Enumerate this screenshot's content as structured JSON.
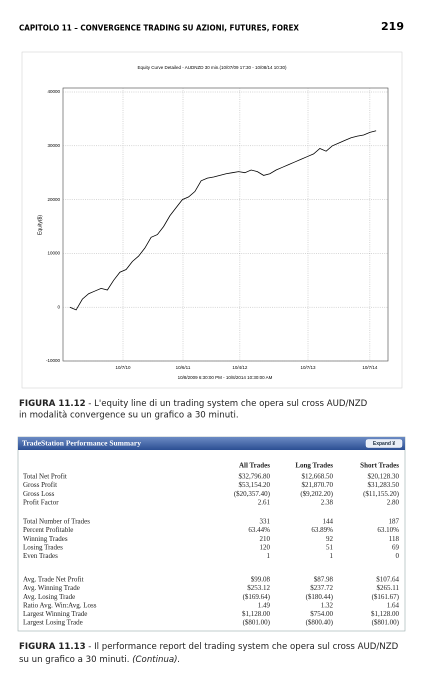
{
  "header": {
    "chapter": "CAPITOLO 11 – CONVERGENCE TRADING SU AZIONI, FUTURES, FOREX",
    "page": "219"
  },
  "chart_data": {
    "type": "line",
    "title": "Equity Curve Detailed - AUDNZD 30 min.(10/07/09 17:30 - 10/08/14 10:30)",
    "ylabel": "Equity($)",
    "xlabel": "10/8/2009 6:30:00 PM - 10/8/2014 10:30:00 AM",
    "values": [
      0,
      -500,
      1500,
      2500,
      3000,
      3500,
      3200,
      5000,
      6500,
      7000,
      8500,
      9500,
      11000,
      13000,
      13500,
      15000,
      17000,
      18500,
      20000,
      20500,
      21500,
      23500,
      24000,
      24200,
      24500,
      24800,
      25000,
      25200,
      25000,
      25500,
      25200,
      24500,
      24800,
      25500,
      26000,
      26500,
      27000,
      27500,
      28000,
      28500,
      29500,
      29000,
      30000,
      30500,
      31000,
      31500,
      31800,
      32000,
      32500,
      32800
    ],
    "color": "#000000",
    "xlim": [
      -1.1,
      50.9
    ],
    "xticks": [
      {
        "value": 8.5,
        "label": "10/7/10"
      },
      {
        "value": 18.1,
        "label": "10/6/11"
      },
      {
        "value": 27.2,
        "label": "10/4/12"
      },
      {
        "value": 38.1,
        "label": "10/7/13"
      },
      {
        "value": 48,
        "label": "10/7/14"
      }
    ],
    "ylim": [
      -10000,
      40000
    ],
    "yticks": [
      -10000,
      0,
      10000,
      20000,
      30000,
      40000
    ],
    "grid": true
  },
  "caption1": {
    "label": "FIGURA 11.12",
    "text": " - L'equity line di un trading system che opera sul cross AUD/NZD",
    "text2": "in modalità convergence su un grafico a 30 minuti."
  },
  "table": {
    "title": "TradeStation Performance Summary",
    "button": "Expand ¥",
    "columns": [
      "All Trades",
      "Long Trades",
      "Short Trades"
    ],
    "groups": [
      [
        [
          "Total Net Profit",
          "$32,796.80",
          "$12,668.50",
          "$20,128.30"
        ],
        [
          "Gross Profit",
          "$53,154.20",
          "$21,870.70",
          "$31,283.50"
        ],
        [
          "Gross Loss",
          "($20,357.40)",
          "($9,202.20)",
          "($11,155.20)"
        ],
        [
          "Profit Factor",
          "2.61",
          "2.38",
          "2.80"
        ]
      ],
      [
        [
          "Total Number of Trades",
          "331",
          "144",
          "187"
        ],
        [
          "Percent Profitable",
          "63.44%",
          "63.89%",
          "63.10%"
        ],
        [
          "Winning Trades",
          "210",
          "92",
          "118"
        ],
        [
          "Losing Trades",
          "120",
          "51",
          "69"
        ],
        [
          "Even Trades",
          "1",
          "1",
          "0"
        ]
      ],
      [
        [
          "Avg. Trade Net Profit",
          "$99.08",
          "$87.98",
          "$107.64"
        ],
        [
          "Avg. Winning Trade",
          "$253.12",
          "$237.72",
          "$265.11"
        ],
        [
          "Avg. Losing Trade",
          "($169.64)",
          "($180.44)",
          "($161.67)"
        ],
        [
          "Ratio Avg. Win:Avg. Loss",
          "1.49",
          "1.32",
          "1.64"
        ],
        [
          "Largest Winning Trade",
          "$1,128.00",
          "$754.00",
          "$1,128.00"
        ],
        [
          "Largest Losing Trade",
          "($801.00)",
          "($800.40)",
          "($801.00)"
        ]
      ]
    ]
  },
  "caption2": {
    "label": "FIGURA 11.13",
    "text": " - Il performance report del trading system che opera sul cross AUD/NZD",
    "text2": "su un grafico a 30 minuti. ",
    "italic": "(Continua)."
  }
}
